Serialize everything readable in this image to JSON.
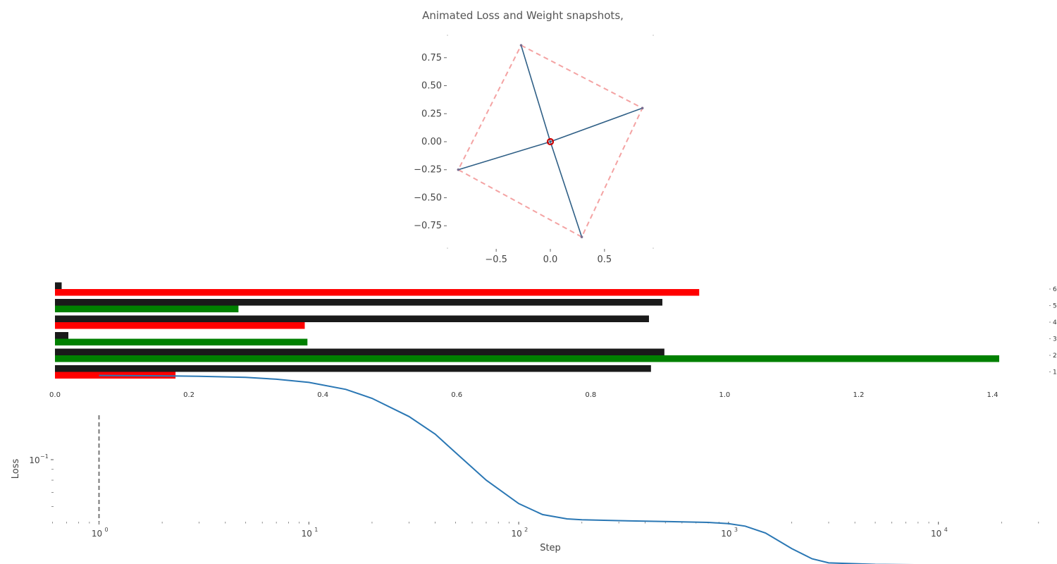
{
  "title": "Animated Loss and Weight snapshots,",
  "chart_data": [
    {
      "type": "scatter",
      "xticks": [
        "−0.5",
        "0.0",
        "0.5"
      ],
      "xtick_values": [
        -0.5,
        0.0,
        0.5
      ],
      "yticks": [
        "0.75",
        "0.50",
        "0.25",
        "0.00",
        "−0.25",
        "−0.50",
        "−0.75"
      ],
      "ytick_values": [
        0.75,
        0.5,
        0.25,
        0.0,
        -0.25,
        -0.5,
        -0.75
      ],
      "xlim": [
        -0.95,
        0.95
      ],
      "ylim": [
        -0.95,
        0.95
      ],
      "vectors": [
        [
          -0.27,
          0.86
        ],
        [
          0.85,
          0.3
        ],
        [
          -0.85,
          -0.25
        ],
        [
          0.29,
          -0.85
        ]
      ],
      "dashed_polygon": [
        [
          -0.27,
          0.86
        ],
        [
          0.85,
          0.3
        ],
        [
          0.29,
          -0.85
        ],
        [
          -0.85,
          -0.25
        ]
      ],
      "origin_marker": [
        0.0,
        0.0
      ],
      "colors": {
        "vectors": "#2f5f86",
        "dashed": "#f4a3a3",
        "marker": "#cc0000"
      }
    },
    {
      "type": "bar",
      "orientation": "horizontal",
      "categories": [
        "1",
        "2",
        "3",
        "4",
        "5",
        "6"
      ],
      "series": [
        {
          "values": [
            0.89,
            0.91,
            0.02,
            0.887,
            0.907,
            0.01
          ],
          "color": "#1a1a1a"
        },
        {
          "values": [
            0.18,
            1.41,
            0.377,
            0.373,
            0.274,
            0.962
          ],
          "colors": [
            "#ff0000",
            "#008000",
            "#008000",
            "#ff0000",
            "#008000",
            "#ff0000"
          ]
        }
      ],
      "xticks": [
        "0.0",
        "0.2",
        "0.4",
        "0.6",
        "0.8",
        "1.0",
        "1.2",
        "1.4"
      ],
      "xtick_values": [
        0,
        0.2,
        0.4,
        0.6,
        0.8,
        1.0,
        1.2,
        1.4
      ],
      "xlim": [
        0,
        1.41
      ]
    },
    {
      "type": "line",
      "xlabel": "Step",
      "ylabel": "Loss",
      "xscale": "log",
      "yscale": "log",
      "xticks": [
        "10",
        "10",
        "10",
        "10",
        "10"
      ],
      "xtick_exponents": [
        "0",
        "1",
        "2",
        "3",
        "4"
      ],
      "yticks": [
        "10"
      ],
      "ytick_exponents": [
        "−1"
      ],
      "vline_x": 1,
      "x": [
        1,
        2,
        3,
        5,
        7,
        10,
        15,
        20,
        30,
        40,
        50,
        70,
        100,
        130,
        170,
        200,
        300,
        500,
        800,
        1000,
        1200,
        1500,
        2000,
        2500,
        3000,
        5000,
        10000,
        20000
      ],
      "y": [
        0.25,
        0.249,
        0.248,
        0.245,
        0.24,
        0.232,
        0.215,
        0.195,
        0.16,
        0.132,
        0.108,
        0.08,
        0.062,
        0.055,
        0.0525,
        0.052,
        0.0515,
        0.051,
        0.0505,
        0.0498,
        0.0485,
        0.045,
        0.038,
        0.034,
        0.0325,
        0.032,
        0.0318,
        0.0317
      ],
      "color": "#2a77b4"
    }
  ]
}
